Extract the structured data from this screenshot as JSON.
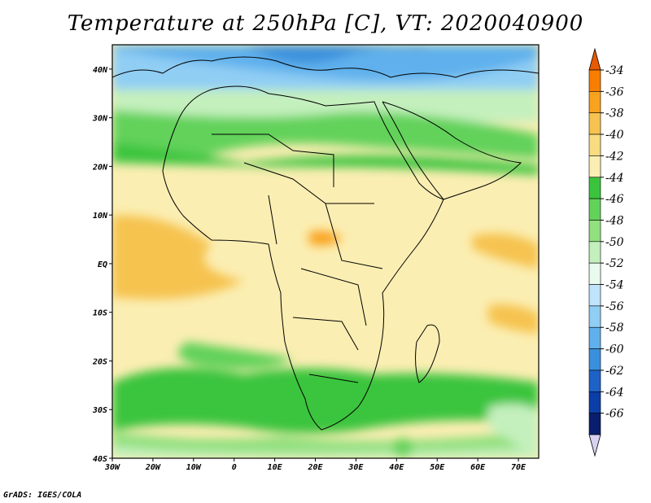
{
  "title": "Temperature at 250hPa [C], VT: 2020040900",
  "credit": "GrADS: IGES/COLA",
  "map": {
    "projection": "latlon",
    "lon_range": [
      -30,
      75
    ],
    "lat_range": [
      -40,
      45
    ],
    "lon_ticks": [
      "30W",
      "20W",
      "10W",
      "0",
      "10E",
      "20E",
      "30E",
      "40E",
      "50E",
      "60E",
      "70E"
    ],
    "lat_ticks": [
      "40S",
      "30S",
      "20S",
      "10S",
      "EQ",
      "10N",
      "20N",
      "30N",
      "40N"
    ]
  },
  "colorbar": {
    "labels": [
      "-34",
      "-36",
      "-38",
      "-40",
      "-42",
      "-44",
      "-46",
      "-48",
      "-50",
      "-52",
      "-54",
      "-56",
      "-58",
      "-60",
      "-62",
      "-64",
      "-66"
    ],
    "colors": [
      "#e85a00",
      "#f97d00",
      "#f9a21e",
      "#f6c350",
      "#f8dc80",
      "#fbeeb2",
      "#3ac43d",
      "#62d25a",
      "#92e07e",
      "#c4f0bd",
      "#e9fbef",
      "#bfe4fb",
      "#90cef4",
      "#5fb0ec",
      "#3a90dc",
      "#1e62c8",
      "#0b3ea8",
      "#0a1e6e",
      "#d7d2f2"
    ]
  }
}
